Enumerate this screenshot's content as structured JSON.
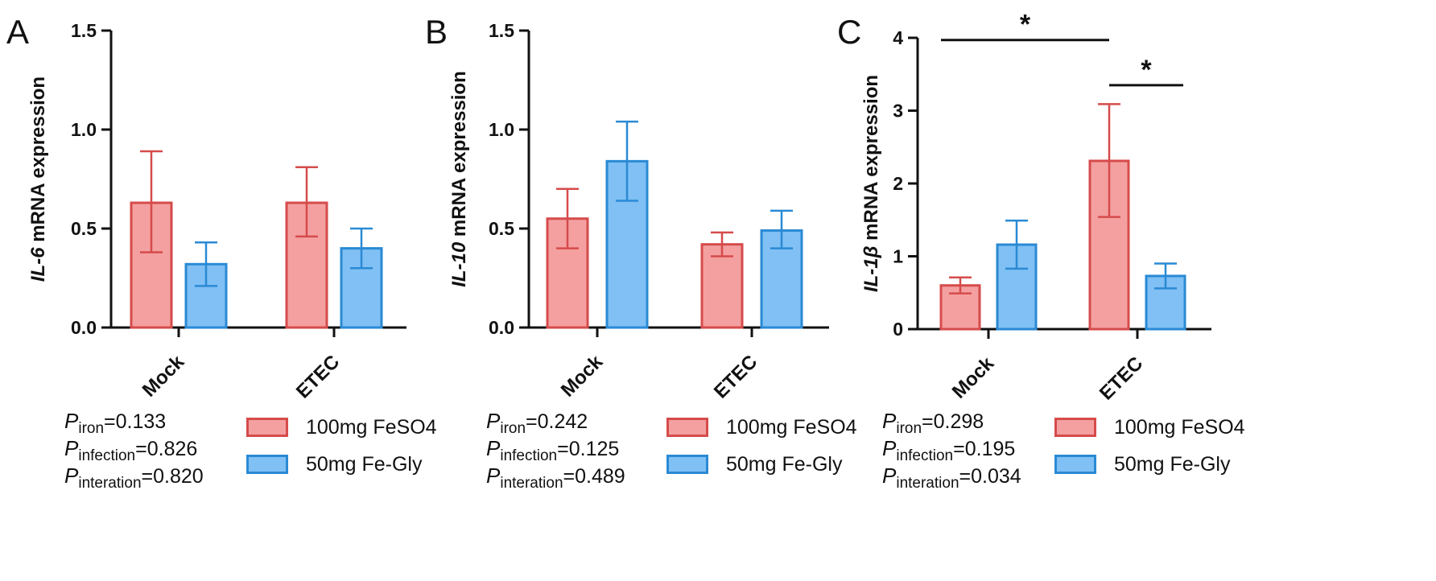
{
  "figure": {
    "colors": {
      "iron_feso4_fill": "#f4a0a0",
      "iron_feso4_stroke": "#d64b4b",
      "fe_gly_fill": "#80c0f4",
      "fe_gly_stroke": "#2a8ad4"
    },
    "legend": {
      "series_0": "100mg FeSO4",
      "series_1": "50mg Fe-Gly"
    }
  },
  "chart_data": [
    {
      "panel": "A",
      "type": "bar",
      "ylabel_italic": "IL-6",
      "ylabel_rest": " mRNA expression",
      "ylim": [
        0,
        1.5
      ],
      "yticks": [
        "0.0",
        "0.5",
        "1.0",
        "1.5"
      ],
      "ytick_values": [
        0,
        0.5,
        1.0,
        1.5
      ],
      "categories": [
        "Mock",
        "ETEC"
      ],
      "series": [
        {
          "name": "100mg FeSO4",
          "values": [
            0.63,
            0.63
          ],
          "err_upper": [
            0.89,
            0.81
          ],
          "err_lower": [
            0.38,
            0.46
          ]
        },
        {
          "name": "50mg Fe-Gly",
          "values": [
            0.32,
            0.4
          ],
          "err_upper": [
            0.43,
            0.5
          ],
          "err_lower": [
            0.21,
            0.3
          ]
        }
      ],
      "significance": [],
      "stats": [
        {
          "p": "P",
          "sub": "iron",
          "value": "=0.133"
        },
        {
          "p": "P",
          "sub": "infection",
          "value": "=0.826"
        },
        {
          "p": "P",
          "sub": "interation",
          "value": "=0.820"
        }
      ]
    },
    {
      "panel": "B",
      "type": "bar",
      "ylabel_italic": "IL-10",
      "ylabel_rest": " mRNA expression",
      "ylim": [
        0,
        1.5
      ],
      "yticks": [
        "0.0",
        "0.5",
        "1.0",
        "1.5"
      ],
      "ytick_values": [
        0,
        0.5,
        1.0,
        1.5
      ],
      "categories": [
        "Mock",
        "ETEC"
      ],
      "series": [
        {
          "name": "100mg FeSO4",
          "values": [
            0.55,
            0.42
          ],
          "err_upper": [
            0.7,
            0.48
          ],
          "err_lower": [
            0.4,
            0.36
          ]
        },
        {
          "name": "50mg Fe-Gly",
          "values": [
            0.84,
            0.49
          ],
          "err_upper": [
            1.04,
            0.59
          ],
          "err_lower": [
            0.64,
            0.4
          ]
        }
      ],
      "significance": [],
      "stats": [
        {
          "p": "P",
          "sub": "iron",
          "value": "=0.242"
        },
        {
          "p": "P",
          "sub": "infection",
          "value": "=0.125"
        },
        {
          "p": "P",
          "sub": "interation",
          "value": "=0.489"
        }
      ]
    },
    {
      "panel": "C",
      "type": "bar",
      "ylabel_italic": "IL-1β",
      "ylabel_rest": " mRNA expression",
      "ylim": [
        0,
        4
      ],
      "yticks": [
        "0",
        "1",
        "2",
        "3",
        "4"
      ],
      "ytick_values": [
        0,
        1,
        2,
        3,
        4
      ],
      "categories": [
        "Mock",
        "ETEC"
      ],
      "series": [
        {
          "name": "100mg FeSO4",
          "values": [
            0.6,
            2.31
          ],
          "err_upper": [
            0.71,
            3.09
          ],
          "err_lower": [
            0.49,
            1.54
          ]
        },
        {
          "name": "50mg Fe-Gly",
          "values": [
            1.16,
            0.73
          ],
          "err_upper": [
            1.49,
            0.9
          ],
          "err_lower": [
            0.83,
            0.56
          ]
        }
      ],
      "significance": [
        {
          "label": "*",
          "from": {
            "cat": 0,
            "series": 0
          },
          "to": {
            "cat": 1,
            "series": 0
          },
          "level": 3.97
        },
        {
          "label": "*",
          "from": {
            "cat": 1,
            "series": 0
          },
          "to": {
            "cat": 1,
            "series": 1
          },
          "level": 3.35
        }
      ],
      "stats": [
        {
          "p": "P",
          "sub": "iron",
          "value": "=0.298"
        },
        {
          "p": "P",
          "sub": "infection",
          "value": "=0.195"
        },
        {
          "p": "P",
          "sub": "interation",
          "value": "=0.034"
        }
      ]
    }
  ]
}
